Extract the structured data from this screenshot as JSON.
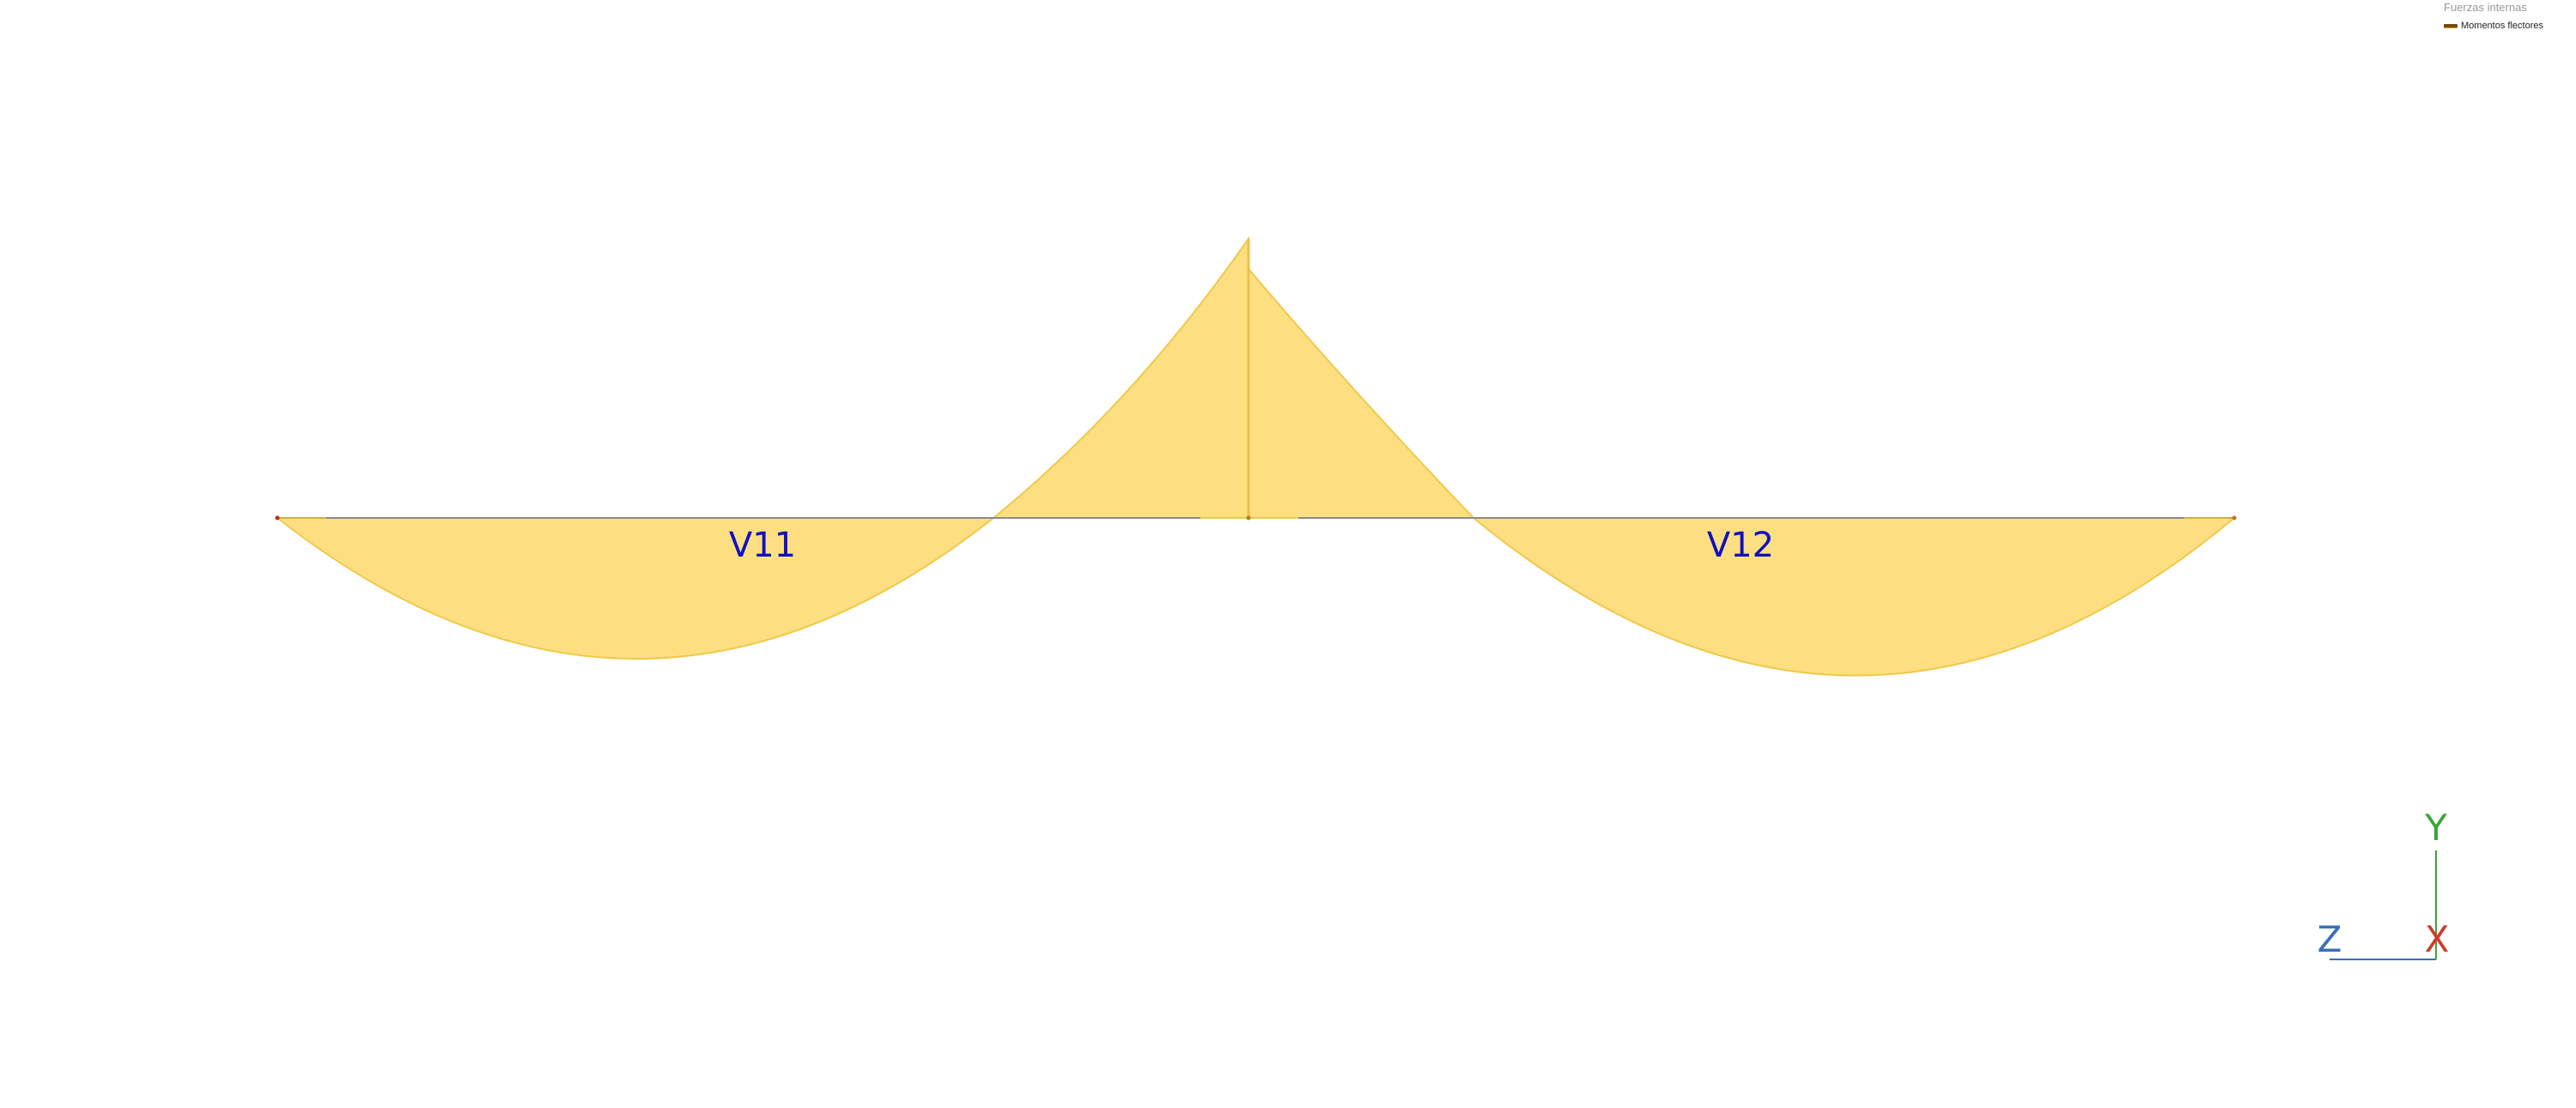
{
  "legend": {
    "title": "Fuerzas internas",
    "items": [
      {
        "label": "Momentos flectores",
        "color": "#7a4a00"
      }
    ]
  },
  "beams": [
    {
      "id": "V11"
    },
    {
      "id": "V12"
    }
  ],
  "axes": {
    "y_label": "Y",
    "x_label": "X",
    "z_label": "Z",
    "y_color": "#3aa53a",
    "x_color": "#d03a2a",
    "z_color": "#3a6fb8"
  },
  "colors": {
    "diagram_fill": "#fddf82",
    "diagram_stroke": "#f0c94a",
    "beam_line": "#8a8a8a",
    "beam_label": "#1010c0"
  }
}
